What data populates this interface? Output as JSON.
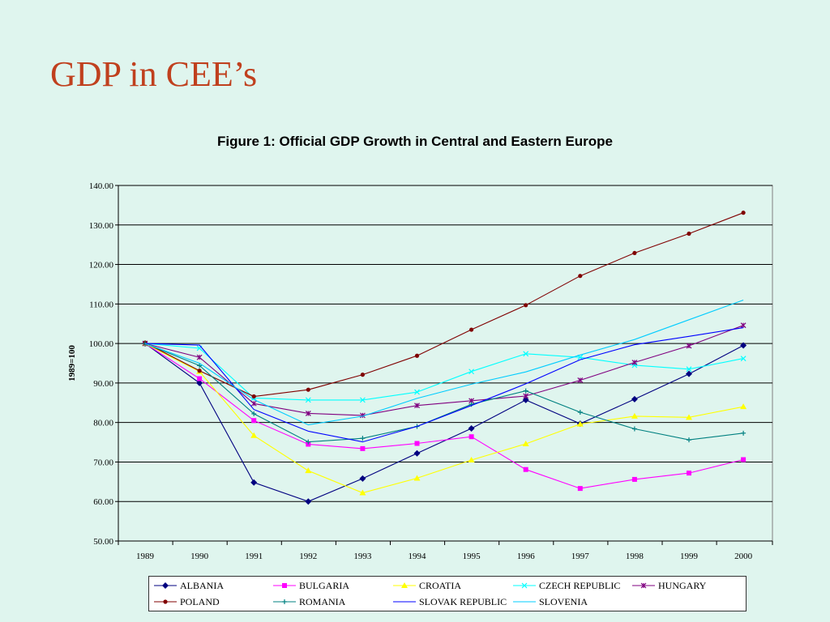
{
  "slide": {
    "title": "GDP in CEE’s"
  },
  "chart_data": {
    "type": "line",
    "title": "Figure 1: Official GDP Growth in Central and Eastern Europe",
    "xlabel": "",
    "ylabel": "1989=100",
    "ylim": [
      50,
      140
    ],
    "yticks": [
      "50.00",
      "60.00",
      "70.00",
      "80.00",
      "90.00",
      "100.00",
      "110.00",
      "120.00",
      "130.00",
      "140.00"
    ],
    "x": [
      "1989",
      "1990",
      "1991",
      "1992",
      "1993",
      "1994",
      "1995",
      "1996",
      "1997",
      "1998",
      "1999",
      "2000"
    ],
    "grid": "horizontal",
    "legend_position": "bottom",
    "series": [
      {
        "name": "ALBANIA",
        "color": "#000080",
        "marker": "diamond",
        "values": [
          100,
          90,
          64.8,
          60,
          65.8,
          72.2,
          78.5,
          85.7,
          79.7,
          85.9,
          92.3,
          99.5
        ]
      },
      {
        "name": "BULGARIA",
        "color": "#ff00ff",
        "marker": "square",
        "values": [
          100,
          91.1,
          80.5,
          74.5,
          73.4,
          74.7,
          76.4,
          68.1,
          63.3,
          65.6,
          67.2,
          70.6
        ]
      },
      {
        "name": "CROATIA",
        "color": "#ffff00",
        "marker": "triangle",
        "values": [
          100,
          92.9,
          76.7,
          67.8,
          62.2,
          65.9,
          70.5,
          74.6,
          79.6,
          81.6,
          81.3,
          84.0
        ]
      },
      {
        "name": "CZECH REPUBLIC",
        "color": "#00ffff",
        "marker": "x",
        "values": [
          100,
          98.8,
          86.2,
          85.7,
          85.7,
          87.7,
          92.9,
          97.4,
          96.5,
          94.5,
          93.5,
          96.2
        ]
      },
      {
        "name": "HUNGARY",
        "color": "#800080",
        "marker": "star",
        "values": [
          100,
          96.5,
          84.8,
          82.3,
          81.8,
          84.3,
          85.5,
          86.7,
          90.7,
          95.2,
          99.4,
          104.6
        ]
      },
      {
        "name": "POLAND",
        "color": "#800000",
        "marker": "circle",
        "values": [
          100.2,
          93.1,
          86.6,
          88.3,
          92.1,
          96.9,
          103.5,
          109.7,
          117.1,
          122.9,
          127.8,
          133.1
        ]
      },
      {
        "name": "ROMANIA",
        "color": "#008080",
        "marker": "plus",
        "values": [
          100,
          94.4,
          82.2,
          75.1,
          76.0,
          79.0,
          84.6,
          88.0,
          82.6,
          78.4,
          75.6,
          77.3
        ]
      },
      {
        "name": "SLOVAK REPUBLIC",
        "color": "#0000ff",
        "marker": "none",
        "values": [
          100,
          99.6,
          83.3,
          77.8,
          75.1,
          79.0,
          84.3,
          89.8,
          95.9,
          99.7,
          101.8,
          104.0
        ]
      },
      {
        "name": "SLOVENIA",
        "color": "#00ccff",
        "marker": "none",
        "values": [
          100,
          95.0,
          85.8,
          79.4,
          81.6,
          86.1,
          89.7,
          92.8,
          97.1,
          101.0,
          106.0,
          111.0
        ]
      }
    ]
  }
}
